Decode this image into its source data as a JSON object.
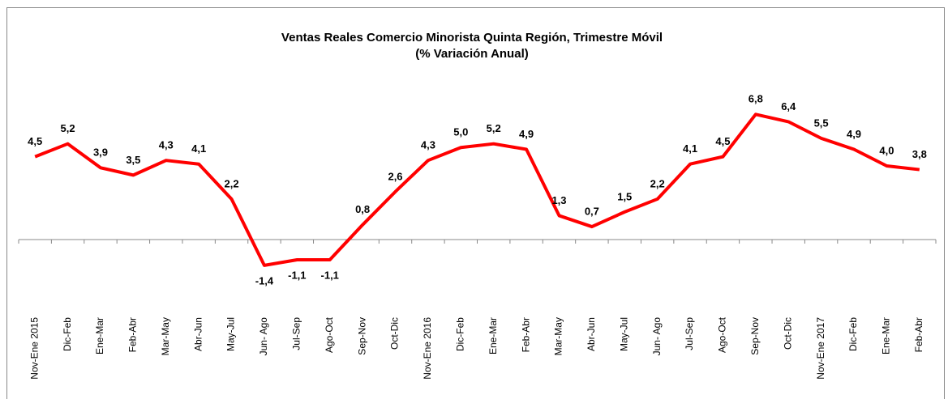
{
  "chart_data": {
    "type": "line",
    "title": "Ventas Reales Comercio Minorista Quinta Región, Trimestre Móvil",
    "subtitle": "(% Variación Anual)",
    "categories": [
      "Nov-Ene 2015",
      "Dic-Feb",
      "Ene-Mar",
      "Feb-Abr",
      "Mar-May",
      "Abr-Jun",
      "May-Jul",
      "Jun- Ago",
      "Jul-Sep",
      "Ago-Oct",
      "Sep-Nov",
      "Oct-Dic",
      "Nov-Ene 2016",
      "Dic-Feb",
      "Ene-Mar",
      "Feb-Abr",
      "Mar-May",
      "Abr-Jun",
      "May-Jul",
      "Jun- Ago",
      "Jul-Sep",
      "Ago-Oct",
      "Sep-Nov",
      "Oct-Dic",
      "Nov-Ene 2017",
      "Dic-Feb",
      "Ene-Mar",
      "Feb-Abr"
    ],
    "values": [
      4.5,
      5.2,
      3.9,
      3.5,
      4.3,
      4.1,
      2.2,
      -1.4,
      -1.1,
      -1.1,
      0.8,
      2.6,
      4.3,
      5.0,
      5.2,
      4.9,
      1.3,
      0.7,
      1.5,
      2.2,
      4.1,
      4.5,
      6.8,
      6.4,
      5.5,
      4.9,
      4.0,
      3.8
    ],
    "value_labels": [
      "4,5",
      "5,2",
      "3,9",
      "3,5",
      "4,3",
      "4,1",
      "2,2",
      "-1,4",
      "-1,1",
      "-1,1",
      "0,8",
      "2,6",
      "4,3",
      "5,0",
      "5,2",
      "4,9",
      "1,3",
      "0,7",
      "1,5",
      "2,2",
      "4,1",
      "4,5",
      "6,8",
      "6,4",
      "5,5",
      "4,9",
      "4,0",
      "3,8"
    ],
    "color": "#ff0000",
    "ylim": [
      -4,
      8
    ]
  }
}
